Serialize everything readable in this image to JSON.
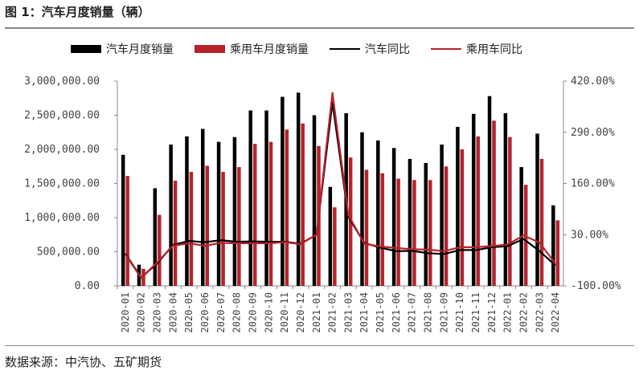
{
  "figure": {
    "title": "图 1：汽车月度销量（辆）",
    "source": "数据来源：中汽协、五矿期货"
  },
  "colors": {
    "car_bar": "#000000",
    "pv_bar": "#b5242c",
    "car_line": "#000000",
    "pv_line": "#b5242c",
    "axis": "#888888"
  },
  "chart_data": {
    "type": "bar",
    "categories": [
      "2020-01",
      "2020-02",
      "2020-03",
      "2020-04",
      "2020-05",
      "2020-06",
      "2020-07",
      "2020-08",
      "2020-09",
      "2020-10",
      "2020-11",
      "2020-12",
      "2021-01",
      "2021-02",
      "2021-03",
      "2021-04",
      "2021-05",
      "2021-06",
      "2021-07",
      "2021-08",
      "2021-09",
      "2021-10",
      "2021-11",
      "2021-12",
      "2022-01",
      "2022-02",
      "2022-03",
      "2022-04"
    ],
    "series": [
      {
        "name": "汽车月度销量",
        "kind": "bar",
        "axis": "left",
        "values": [
          1920000,
          310000,
          1430000,
          2070000,
          2190000,
          2300000,
          2110000,
          2180000,
          2570000,
          2570000,
          2770000,
          2830000,
          2500000,
          1450000,
          2530000,
          2250000,
          2130000,
          2020000,
          1860000,
          1800000,
          2070000,
          2330000,
          2520000,
          2780000,
          2530000,
          1740000,
          2230000,
          1180000
        ]
      },
      {
        "name": "乘用车月度销量",
        "kind": "bar",
        "axis": "left",
        "values": [
          1610000,
          250000,
          1040000,
          1540000,
          1670000,
          1760000,
          1670000,
          1740000,
          2080000,
          2110000,
          2290000,
          2380000,
          2050000,
          1150000,
          1880000,
          1700000,
          1650000,
          1570000,
          1550000,
          1550000,
          1750000,
          2000000,
          2190000,
          2420000,
          2180000,
          1480000,
          1860000,
          960000
        ]
      },
      {
        "name": "汽车同比",
        "kind": "line",
        "axis": "right",
        "values": [
          -18,
          -79,
          -43,
          4,
          14,
          11,
          16,
          12,
          13,
          12,
          12,
          7,
          30,
          366,
          75,
          9,
          -3,
          -12,
          -11,
          -17,
          -19,
          -9,
          -9,
          -2,
          1,
          19,
          -12,
          -48
        ]
      },
      {
        "name": "乘用车同比",
        "kind": "line",
        "axis": "right",
        "values": [
          -20,
          -80,
          -40,
          2,
          8,
          2,
          9,
          8,
          8,
          8,
          11,
          6,
          30,
          390,
          80,
          7,
          0,
          -4,
          -7,
          -8,
          -12,
          -2,
          -2,
          1,
          5,
          28,
          10,
          -44
        ]
      }
    ],
    "y_left": {
      "min": 0,
      "max": 3000000,
      "step": 500000,
      "tick_labels": [
        "0.00",
        "500,000.00",
        "1,000,000.00",
        "1,500,000.00",
        "2,000,000.00",
        "2,500,000.00",
        "3,000,000.00"
      ]
    },
    "y_right": {
      "min": -100,
      "max": 420,
      "unit": "%",
      "tick_values": [
        -100,
        30,
        160,
        290,
        420
      ],
      "tick_labels": [
        "-100.00%",
        "30.00%",
        "160.00%",
        "290.00%",
        "420.00%"
      ]
    },
    "grid": false,
    "legend_position": "top"
  }
}
